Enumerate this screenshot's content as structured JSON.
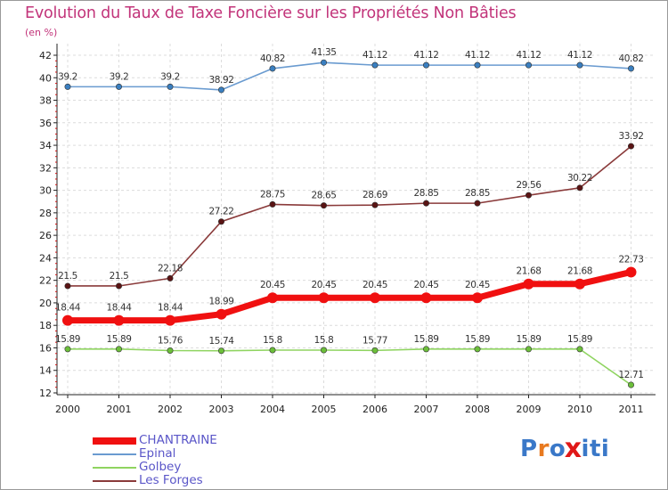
{
  "chart_data": {
    "type": "line",
    "title": "Evolution du Taux de Taxe Foncière sur les Propriétés Non Bâties",
    "ylabel": "(en %)",
    "xlabel": "",
    "categories": [
      "2000",
      "2001",
      "2002",
      "2003",
      "2004",
      "2005",
      "2006",
      "2007",
      "2008",
      "2009",
      "2010",
      "2011"
    ],
    "ylim": [
      12,
      42
    ],
    "yticks": [
      12,
      14,
      16,
      18,
      20,
      22,
      24,
      26,
      28,
      30,
      32,
      34,
      36,
      38,
      40,
      42
    ],
    "grid": true,
    "series": [
      {
        "name": "Epinal",
        "color": "#6a9bd0",
        "dot": "#3a7fc0",
        "width": 1.6,
        "dot_r": 3.2,
        "labels": [
          "39.2",
          "39.2",
          "39.2",
          "38.92",
          "40.82",
          "41.35",
          "41.12",
          "41.12",
          "41.12",
          "41.12",
          "41.12",
          "40.82"
        ],
        "values": [
          39.2,
          39.2,
          39.2,
          38.92,
          40.82,
          41.35,
          41.12,
          41.12,
          41.12,
          41.12,
          41.12,
          40.82
        ]
      },
      {
        "name": "Les Forges",
        "color": "#8a3a3a",
        "dot": "#5a1414",
        "width": 1.6,
        "dot_r": 3.2,
        "labels": [
          "21.5",
          "21.5",
          "22.18",
          "27.22",
          "28.75",
          "28.65",
          "28.69",
          "28.85",
          "28.85",
          "29.56",
          "30.22",
          "33.92"
        ],
        "values": [
          21.5,
          21.5,
          22.18,
          27.22,
          28.75,
          28.65,
          28.69,
          28.85,
          28.85,
          29.56,
          30.22,
          33.92
        ]
      },
      {
        "name": "CHANTRAINE",
        "color": "#f01010",
        "dot": "#f01010",
        "width": 7,
        "dot_r": 6,
        "labels": [
          "18.44",
          "18.44",
          "18.44",
          "18.99",
          "20.45",
          "20.45",
          "20.45",
          "20.45",
          "20.45",
          "21.68",
          "21.68",
          "22.73"
        ],
        "values": [
          18.44,
          18.44,
          18.44,
          18.99,
          20.45,
          20.45,
          20.45,
          20.45,
          20.45,
          21.68,
          21.68,
          22.73
        ]
      },
      {
        "name": "Golbey",
        "color": "#8fd460",
        "dot": "#6cbf3a",
        "width": 1.6,
        "dot_r": 3.2,
        "labels": [
          "15.89",
          "15.89",
          "15.76",
          "15.74",
          "15.8",
          "15.8",
          "15.77",
          "15.89",
          "15.89",
          "15.89",
          "15.89",
          "12.71"
        ],
        "values": [
          15.89,
          15.89,
          15.76,
          15.74,
          15.8,
          15.8,
          15.77,
          15.89,
          15.89,
          15.89,
          15.89,
          12.71
        ]
      }
    ],
    "legend": [
      {
        "name": "CHANTRAINE",
        "color": "#f01010",
        "thick": true
      },
      {
        "name": "Epinal",
        "color": "#6a9bd0",
        "thick": false
      },
      {
        "name": "Golbey",
        "color": "#8fd460",
        "thick": false
      },
      {
        "name": "Les Forges",
        "color": "#8a3a3a",
        "thick": false
      }
    ]
  },
  "logo": {
    "text": "Proxiti",
    "letter_colors": [
      "#3a78c8",
      "#e87a20",
      "#3a78c8",
      "#e01818",
      "#3a78c8",
      "#3a78c8",
      "#3a78c8"
    ]
  }
}
